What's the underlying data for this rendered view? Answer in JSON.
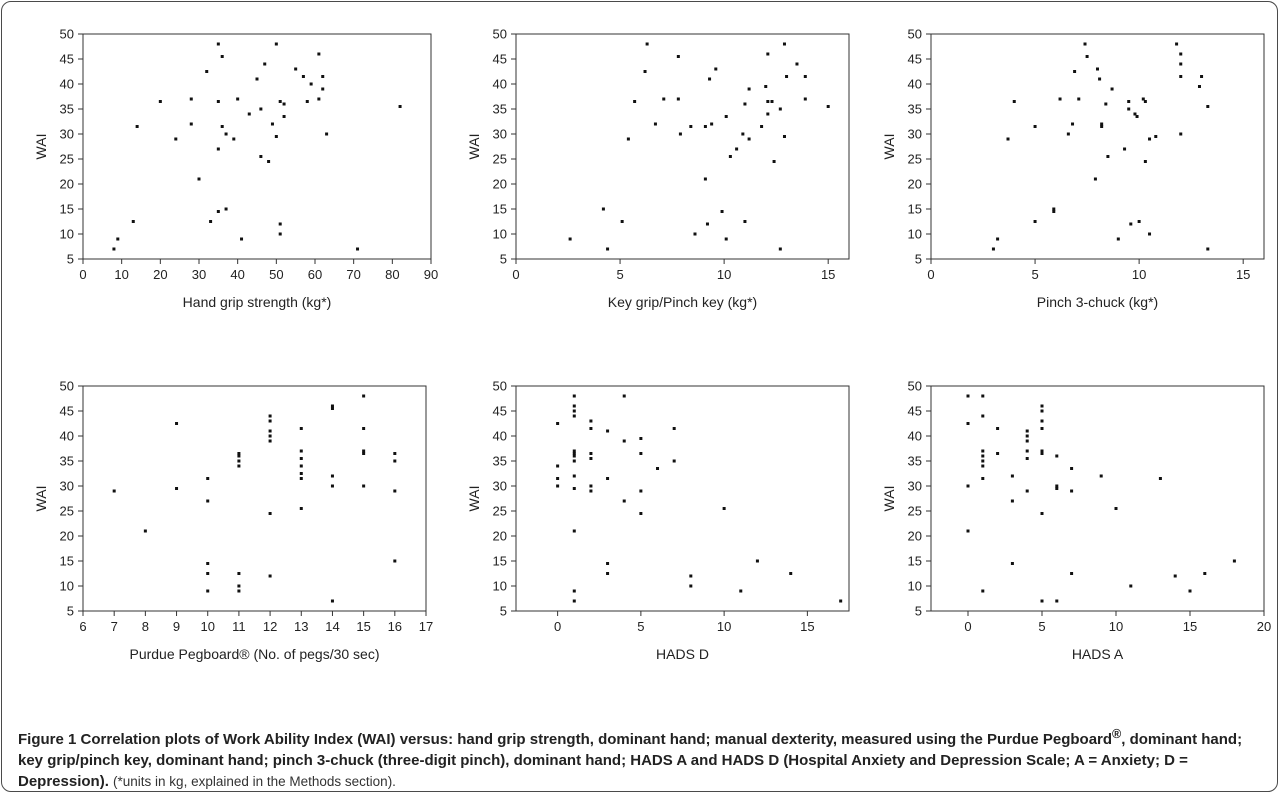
{
  "chart_data": [
    {
      "type": "scatter",
      "xlabel": "Hand grip strength (kg*)",
      "ylabel": "WAI",
      "xlim": [
        0,
        90
      ],
      "ylim": [
        5,
        50
      ],
      "xticks": [
        0,
        10,
        20,
        30,
        40,
        50,
        60,
        70,
        80,
        90
      ],
      "yticks": [
        5,
        10,
        15,
        20,
        25,
        30,
        35,
        40,
        45,
        50
      ],
      "grid": false,
      "points": [
        [
          8,
          7
        ],
        [
          9,
          9
        ],
        [
          13,
          12.5
        ],
        [
          14,
          31.5
        ],
        [
          20,
          36.5
        ],
        [
          24,
          29
        ],
        [
          28,
          37
        ],
        [
          28,
          32
        ],
        [
          30,
          21
        ],
        [
          32,
          42.5
        ],
        [
          33,
          12.5
        ],
        [
          35,
          48
        ],
        [
          35,
          36.5
        ],
        [
          35,
          27
        ],
        [
          35,
          14.5
        ],
        [
          36,
          31.5
        ],
        [
          36,
          45.5
        ],
        [
          37,
          30
        ],
        [
          37,
          15
        ],
        [
          39,
          29
        ],
        [
          40,
          37
        ],
        [
          41,
          9
        ],
        [
          43,
          34
        ],
        [
          45,
          41
        ],
        [
          46,
          25.5
        ],
        [
          46,
          35
        ],
        [
          47,
          44
        ],
        [
          48,
          24.5
        ],
        [
          49,
          32
        ],
        [
          50,
          48
        ],
        [
          50,
          29.5
        ],
        [
          51,
          36.5
        ],
        [
          52,
          33.5
        ],
        [
          52,
          36
        ],
        [
          51,
          12
        ],
        [
          51,
          10
        ],
        [
          55,
          43
        ],
        [
          57,
          41.5
        ],
        [
          58,
          36.5
        ],
        [
          59,
          40
        ],
        [
          61,
          37
        ],
        [
          61,
          46
        ],
        [
          62,
          39
        ],
        [
          62,
          41.5
        ],
        [
          63,
          30
        ],
        [
          71,
          7
        ],
        [
          82,
          35.5
        ]
      ]
    },
    {
      "type": "scatter",
      "xlabel": "Key grip/Pinch key (kg*)",
      "ylabel": "WAI",
      "xlim": [
        0,
        16
      ],
      "ylim": [
        5,
        50
      ],
      "xticks": [
        0,
        5,
        10,
        15
      ],
      "yticks": [
        5,
        10,
        15,
        20,
        25,
        30,
        35,
        40,
        45,
        50
      ],
      "grid": false,
      "points": [
        [
          2.6,
          9
        ],
        [
          4.2,
          15
        ],
        [
          4.4,
          7
        ],
        [
          5.1,
          12.5
        ],
        [
          5.4,
          29
        ],
        [
          5.7,
          36.5
        ],
        [
          6.2,
          42.5
        ],
        [
          6.3,
          48
        ],
        [
          6.7,
          32
        ],
        [
          7.1,
          37
        ],
        [
          7.8,
          37
        ],
        [
          7.8,
          45.5
        ],
        [
          7.9,
          30
        ],
        [
          8.4,
          31.5
        ],
        [
          8.6,
          10
        ],
        [
          9.1,
          31.5
        ],
        [
          9.1,
          21
        ],
        [
          9.2,
          12
        ],
        [
          9.3,
          41
        ],
        [
          9.4,
          32
        ],
        [
          9.6,
          43
        ],
        [
          9.9,
          14.5
        ],
        [
          10.1,
          33.5
        ],
        [
          10.1,
          9
        ],
        [
          10.3,
          25.5
        ],
        [
          10.6,
          27
        ],
        [
          10.9,
          30
        ],
        [
          11,
          36
        ],
        [
          11,
          12.5
        ],
        [
          11.2,
          29
        ],
        [
          11.2,
          39
        ],
        [
          11.8,
          31.5
        ],
        [
          12,
          39.5
        ],
        [
          12.1,
          36.5
        ],
        [
          12.1,
          34
        ],
        [
          12.3,
          36.5
        ],
        [
          12.1,
          46
        ],
        [
          12.4,
          24.5
        ],
        [
          12.7,
          35
        ],
        [
          12.7,
          7
        ],
        [
          12.9,
          29.5
        ],
        [
          12.9,
          48
        ],
        [
          13,
          41.5
        ],
        [
          13.5,
          44
        ],
        [
          13.9,
          41.5
        ],
        [
          13.9,
          37
        ],
        [
          15,
          35.5
        ]
      ]
    },
    {
      "type": "scatter",
      "xlabel": "Pinch 3-chuck (kg*)",
      "ylabel": "WAI",
      "xlim": [
        0,
        16
      ],
      "ylim": [
        5,
        50
      ],
      "xticks": [
        0,
        5,
        10,
        15
      ],
      "yticks": [
        5,
        10,
        15,
        20,
        25,
        30,
        35,
        40,
        45,
        50
      ],
      "grid": false,
      "points": [
        [
          3,
          7
        ],
        [
          3.2,
          9
        ],
        [
          3.7,
          29
        ],
        [
          4,
          36.5
        ],
        [
          5,
          12.5
        ],
        [
          5,
          31.5
        ],
        [
          5.9,
          15
        ],
        [
          5.9,
          14.5
        ],
        [
          6.2,
          37
        ],
        [
          6.6,
          30
        ],
        [
          6.8,
          32
        ],
        [
          6.9,
          42.5
        ],
        [
          7.1,
          37
        ],
        [
          7.4,
          48
        ],
        [
          7.5,
          45.5
        ],
        [
          7.9,
          21
        ],
        [
          8,
          43
        ],
        [
          8.1,
          41
        ],
        [
          8.2,
          32
        ],
        [
          8.2,
          31.5
        ],
        [
          8.4,
          36
        ],
        [
          8.5,
          25.5
        ],
        [
          8.7,
          39
        ],
        [
          9,
          9
        ],
        [
          9.3,
          27
        ],
        [
          9.5,
          36.5
        ],
        [
          9.5,
          35
        ],
        [
          9.6,
          12
        ],
        [
          9.8,
          34
        ],
        [
          9.9,
          33.5
        ],
        [
          10,
          12.5
        ],
        [
          10.2,
          37
        ],
        [
          10.3,
          24.5
        ],
        [
          10.3,
          36.5
        ],
        [
          10.5,
          29
        ],
        [
          10.5,
          10
        ],
        [
          10.8,
          29.5
        ],
        [
          11.8,
          48
        ],
        [
          12,
          46
        ],
        [
          12,
          44
        ],
        [
          12,
          41.5
        ],
        [
          12,
          30
        ],
        [
          12.9,
          39.5
        ],
        [
          13,
          41.5
        ],
        [
          13.3,
          35.5
        ],
        [
          13.3,
          7
        ]
      ]
    },
    {
      "type": "scatter",
      "xlabel": "Purdue Pegboard® (No. of pegs/30 sec)",
      "ylabel": "WAI",
      "xlim": [
        6,
        17
      ],
      "ylim": [
        5,
        50
      ],
      "xticks": [
        6,
        7,
        8,
        9,
        10,
        11,
        12,
        13,
        14,
        15,
        16,
        17
      ],
      "yticks": [
        5,
        10,
        15,
        20,
        25,
        30,
        35,
        40,
        45,
        50
      ],
      "grid": false,
      "points": [
        [
          7,
          29
        ],
        [
          8,
          21
        ],
        [
          9,
          42.5
        ],
        [
          9,
          29.5
        ],
        [
          10,
          31.5
        ],
        [
          10,
          27
        ],
        [
          10,
          14.5
        ],
        [
          10,
          12.5
        ],
        [
          10,
          9
        ],
        [
          11,
          36.5
        ],
        [
          11,
          36
        ],
        [
          11,
          35
        ],
        [
          11,
          34
        ],
        [
          11,
          12.5
        ],
        [
          11,
          10
        ],
        [
          11,
          9
        ],
        [
          12,
          44
        ],
        [
          12,
          43
        ],
        [
          12,
          41
        ],
        [
          12,
          40
        ],
        [
          12,
          39
        ],
        [
          12,
          24.5
        ],
        [
          12,
          12
        ],
        [
          13,
          41.5
        ],
        [
          13,
          37
        ],
        [
          13,
          35.5
        ],
        [
          13,
          34
        ],
        [
          13,
          32.5
        ],
        [
          13,
          31.5
        ],
        [
          13,
          25.5
        ],
        [
          14,
          46
        ],
        [
          14,
          45.5
        ],
        [
          14,
          32
        ],
        [
          14,
          30
        ],
        [
          14,
          7
        ],
        [
          15,
          48
        ],
        [
          15,
          41.5
        ],
        [
          15,
          37
        ],
        [
          15,
          36.5
        ],
        [
          15,
          30
        ],
        [
          16,
          36.5
        ],
        [
          16,
          35
        ],
        [
          16,
          29
        ],
        [
          16,
          15
        ]
      ]
    },
    {
      "type": "scatter",
      "xlabel": "HADS D",
      "ylabel": "WAI",
      "xlim": [
        -2.5,
        17.5
      ],
      "ylim": [
        5,
        50
      ],
      "xticks": [
        0,
        5,
        10,
        15
      ],
      "yticks": [
        5,
        10,
        15,
        20,
        25,
        30,
        35,
        40,
        45,
        50
      ],
      "grid": false,
      "points": [
        [
          0,
          42.5
        ],
        [
          0,
          34
        ],
        [
          0,
          31.5
        ],
        [
          0,
          30
        ],
        [
          1,
          48
        ],
        [
          1,
          46
        ],
        [
          1,
          45
        ],
        [
          1,
          44
        ],
        [
          1,
          37
        ],
        [
          1,
          36.5
        ],
        [
          1,
          36
        ],
        [
          1,
          35
        ],
        [
          1,
          32
        ],
        [
          1,
          29.5
        ],
        [
          1,
          21
        ],
        [
          1,
          9
        ],
        [
          1,
          7
        ],
        [
          2,
          43
        ],
        [
          2,
          41.5
        ],
        [
          2,
          36.5
        ],
        [
          2,
          35.5
        ],
        [
          2,
          30
        ],
        [
          2,
          29
        ],
        [
          3,
          41
        ],
        [
          3,
          31.5
        ],
        [
          3,
          14.5
        ],
        [
          3,
          12.5
        ],
        [
          4,
          48
        ],
        [
          4,
          39
        ],
        [
          4,
          27
        ],
        [
          5,
          39.5
        ],
        [
          5,
          36.5
        ],
        [
          5,
          29
        ],
        [
          5,
          24.5
        ],
        [
          6,
          33.5
        ],
        [
          7,
          41.5
        ],
        [
          7,
          35
        ],
        [
          8,
          12
        ],
        [
          8,
          10
        ],
        [
          10,
          25.5
        ],
        [
          11,
          9
        ],
        [
          12,
          15
        ],
        [
          14,
          12.5
        ],
        [
          17,
          7
        ]
      ]
    },
    {
      "type": "scatter",
      "xlabel": "HADS A",
      "ylabel": "WAI",
      "xlim": [
        -2.5,
        20
      ],
      "ylim": [
        5,
        50
      ],
      "xticks": [
        0,
        5,
        10,
        15,
        20
      ],
      "yticks": [
        5,
        10,
        15,
        20,
        25,
        30,
        35,
        40,
        45,
        50
      ],
      "grid": false,
      "points": [
        [
          0,
          48
        ],
        [
          0,
          42.5
        ],
        [
          0,
          30
        ],
        [
          0,
          21
        ],
        [
          1,
          48
        ],
        [
          1,
          44
        ],
        [
          1,
          37
        ],
        [
          1,
          36
        ],
        [
          1,
          35
        ],
        [
          1,
          34
        ],
        [
          1,
          31.5
        ],
        [
          1,
          9
        ],
        [
          2,
          41.5
        ],
        [
          2,
          36.5
        ],
        [
          3,
          32
        ],
        [
          3,
          27
        ],
        [
          3,
          14.5
        ],
        [
          4,
          41
        ],
        [
          4,
          40
        ],
        [
          4,
          39
        ],
        [
          4,
          37
        ],
        [
          4,
          35.5
        ],
        [
          4,
          29
        ],
        [
          5,
          46
        ],
        [
          5,
          45
        ],
        [
          5,
          43
        ],
        [
          5,
          41.5
        ],
        [
          5,
          37
        ],
        [
          5,
          36.5
        ],
        [
          5,
          24.5
        ],
        [
          5,
          7
        ],
        [
          6,
          36
        ],
        [
          6,
          30
        ],
        [
          6,
          29.5
        ],
        [
          6,
          7
        ],
        [
          7,
          33.5
        ],
        [
          7,
          29
        ],
        [
          7,
          12.5
        ],
        [
          9,
          32
        ],
        [
          10,
          25.5
        ],
        [
          11,
          10
        ],
        [
          13,
          31.5
        ],
        [
          14,
          12
        ],
        [
          15,
          9
        ],
        [
          16,
          12.5
        ],
        [
          18,
          15
        ]
      ]
    }
  ],
  "caption": {
    "figure_label": "Figure 1",
    "bold_text": "Correlation plots of Work Ability Index (WAI) versus: hand grip strength, dominant hand; manual dexterity, measured using the Purdue Pegboard",
    "bold_sup": "®",
    "bold_tail": ", dominant hand; key grip/pinch key, dominant hand; pinch 3-chuck (three-digit pinch), dominant hand; HADS A and HADS D (Hospital Anxiety and Depression Scale; A = Anxiety; D = Depression).",
    "note": "(*units in kg, explained in the Methods section)."
  }
}
